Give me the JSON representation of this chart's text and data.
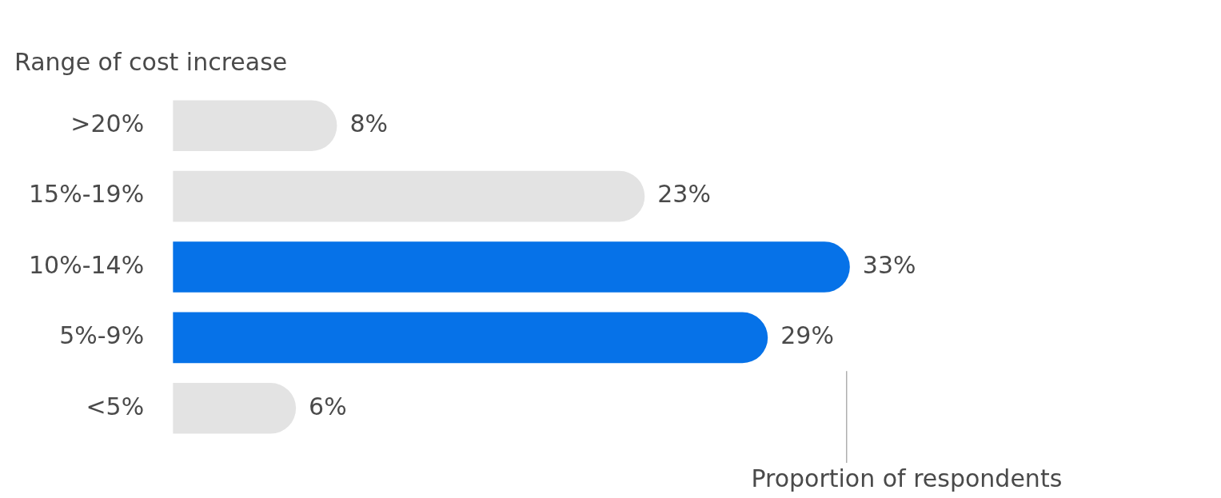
{
  "chart_data": {
    "type": "bar",
    "orientation": "horizontal",
    "ylabel": "Range of cost increase",
    "xlabel": "Proportion of respondents",
    "categories": [
      ">20%",
      "15%-19%",
      "10%-14%",
      "5%-9%",
      "<5%"
    ],
    "values": [
      8,
      23,
      33,
      29,
      6
    ],
    "colors": [
      "#e3e3e3",
      "#e3e3e3",
      "#0672e8",
      "#0672e8",
      "#e3e3e3"
    ],
    "value_labels": [
      "8%",
      "23%",
      "33%",
      "29%",
      "6%"
    ],
    "legend": false
  }
}
